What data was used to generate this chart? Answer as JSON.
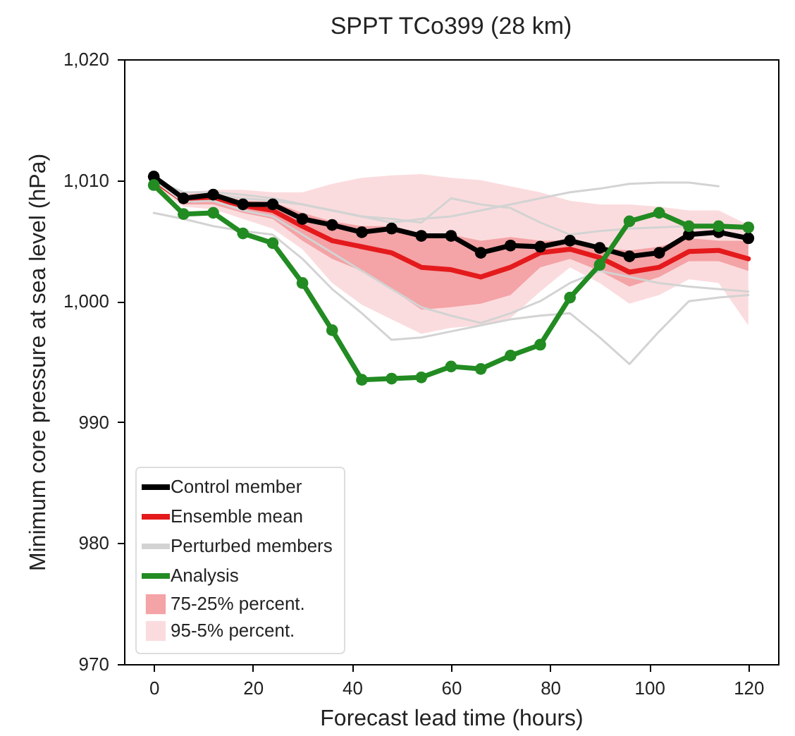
{
  "chart_data": {
    "type": "line",
    "title": "SPPT TCo399 (28 km)",
    "xlabel": "Forecast lead time (hours)",
    "ylabel": "Minimum core pressure at sea level (hPa)",
    "x": [
      0,
      6,
      12,
      18,
      24,
      30,
      36,
      42,
      48,
      54,
      60,
      66,
      72,
      78,
      84,
      90,
      96,
      102,
      108,
      114,
      120
    ],
    "xlim": [
      -6,
      126
    ],
    "xticks": [
      0,
      20,
      40,
      60,
      80,
      100,
      120
    ],
    "ylim": [
      970,
      1020
    ],
    "yticks": [
      970,
      980,
      990,
      {
        "value": 1000,
        "label": "1,000"
      },
      {
        "value": 1010,
        "label": "1,010"
      },
      {
        "value": 1020,
        "label": "1,020"
      }
    ],
    "legend": "bottom left",
    "series": [
      {
        "name": "Control member",
        "color": "#000000",
        "marker": "circle",
        "values": [
          1010.3,
          1008.5,
          1008.8,
          1008.0,
          1008.0,
          1006.8,
          1006.3,
          1005.7,
          1006.0,
          1005.4,
          1005.4,
          1004.0,
          1004.6,
          1004.5,
          1005.0,
          1004.4,
          1003.7,
          1004.0,
          1005.5,
          1005.7,
          1005.2
        ]
      },
      {
        "name": "Ensemble mean",
        "color": "#e41a1c",
        "values": [
          1010.0,
          1008.3,
          1008.5,
          1007.9,
          1007.5,
          1006.2,
          1005.0,
          1004.5,
          1004.0,
          1002.8,
          1002.6,
          1002.0,
          1002.8,
          1004.0,
          1004.3,
          1003.6,
          1002.4,
          1002.8,
          1004.1,
          1004.2,
          1003.5
        ]
      },
      {
        "name": "Perturbed members",
        "color": "#d3d3d3",
        "values": [
          1007.3,
          1006.8,
          1006.2,
          1005.8,
          1005.5,
          1003.5,
          1001.0,
          999.0,
          996.8,
          997.0,
          997.5,
          998.0,
          998.5,
          998.8,
          999.0,
          997.0,
          994.8,
          997.5,
          1000.0,
          1000.3,
          1000.5
        ]
      },
      {
        "color": "#d3d3d3",
        "values": [
          1010.0,
          1009.0,
          1009.0,
          1008.8,
          1008.5,
          1008.0,
          1007.5,
          1007.0,
          1006.5,
          1006.8,
          1007.0,
          1007.5,
          1008.0,
          1008.5,
          1009.0,
          1009.3,
          1009.7,
          1009.8,
          1009.8,
          1009.5,
          null
        ]
      },
      {
        "color": "#d3d3d3",
        "values": [
          1010.0,
          1008.7,
          1008.8,
          1008.5,
          1008.3,
          1008.0,
          1007.5,
          1007.0,
          1006.8,
          1006.5,
          1008.5,
          1008.0,
          1007.7,
          1006.5,
          1005.5,
          1005.8,
          1006.0,
          1006.1,
          1006.2,
          1006.1,
          1006.0
        ]
      },
      {
        "color": "#d3d3d3",
        "values": [
          1010.0,
          1008.2,
          1008.3,
          1007.5,
          1007.0,
          1005.5,
          1004.0,
          1002.5,
          1001.0,
          999.5,
          998.8,
          998.2,
          999.0,
          1000.0,
          1001.5,
          1002.5,
          1002.0,
          1001.5,
          1001.2,
          1001.0,
          1000.8
        ]
      },
      {
        "name": "Analysis",
        "color": "#228b22",
        "marker": "circle",
        "values": [
          1009.6,
          1007.2,
          1007.3,
          1005.6,
          1004.8,
          1001.5,
          997.6,
          993.5,
          993.6,
          993.7,
          994.6,
          994.4,
          995.5,
          996.4,
          1000.3,
          1003.0,
          1006.6,
          1007.3,
          1006.2,
          1006.2,
          1006.1
        ]
      },
      {
        "name": "75-25% percent.",
        "color": "#f4a3a6",
        "values": [
          null,
          null,
          null,
          null,
          null,
          null,
          null,
          null,
          null,
          null,
          null,
          null,
          null,
          null,
          null,
          null,
          null,
          null,
          null,
          null,
          null
        ],
        "lower": [
          1009.8,
          1008.0,
          1008.0,
          1007.3,
          1006.8,
          1005.0,
          1003.5,
          1002.5,
          1001.0,
          999.3,
          999.5,
          999.8,
          1000.5,
          1002.8,
          1003.5,
          1002.5,
          1001.2,
          1002.0,
          1003.3,
          1003.3,
          1002.5
        ],
        "upper": [
          1010.3,
          1008.8,
          1009.0,
          1008.3,
          1008.2,
          1007.3,
          1006.6,
          1006.2,
          1006.2,
          1005.6,
          1005.5,
          1005.0,
          1005.3,
          1005.0,
          1005.0,
          1004.4,
          1004.2,
          1004.5,
          1005.2,
          1005.0,
          1005.0
        ]
      },
      {
        "name": "95-5% percent.",
        "color": "#fbdcde",
        "values": [
          null,
          null,
          null,
          null,
          null,
          null,
          null,
          null,
          null,
          null,
          null,
          null,
          null,
          null,
          null,
          null,
          null,
          null,
          null,
          null,
          null
        ],
        "lower": [
          1009.6,
          1007.8,
          1007.6,
          1006.8,
          1006.0,
          1004.3,
          1001.5,
          999.7,
          998.5,
          997.3,
          997.8,
          998.0,
          998.6,
          1000.8,
          1002.8,
          1001.5,
          999.8,
          1000.5,
          1001.8,
          1001.5,
          998.0
        ],
        "upper": [
          1010.3,
          1009.0,
          1009.2,
          1009.2,
          1009.0,
          1009.0,
          1009.7,
          1010.2,
          1010.4,
          1010.5,
          1010.2,
          1010.0,
          1009.5,
          1009.0,
          1008.3,
          1008.0,
          1008.0,
          1007.8,
          1007.5,
          1007.5,
          1006.3
        ]
      }
    ]
  }
}
